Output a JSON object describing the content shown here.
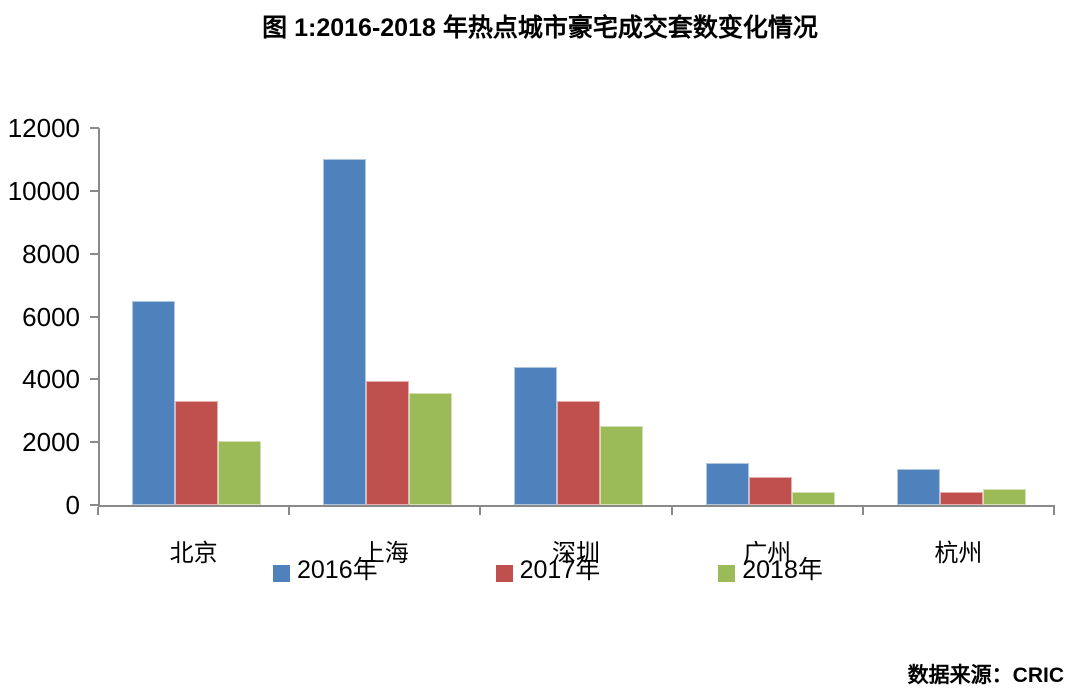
{
  "page": {
    "background": "#ffffff",
    "text_color": "#000000",
    "axis_color": "#8a8a8a"
  },
  "title": "图 1:2016-2018 年热点城市豪宅成交套数变化情况",
  "source_note": "数据来源：CRIC",
  "chart_data": {
    "type": "bar",
    "title": "图 1:2016-2018 年热点城市豪宅成交套数变化情况",
    "categories": [
      "北京",
      "上海",
      "深圳",
      "广州",
      "杭州"
    ],
    "series": [
      {
        "name": "2016年",
        "color": "#4F81BD",
        "values": [
          6500,
          11000,
          4400,
          1350,
          1150
        ]
      },
      {
        "name": "2017年",
        "color": "#C0504D",
        "values": [
          3300,
          3950,
          3300,
          900,
          400
        ]
      },
      {
        "name": "2018年",
        "color": "#9BBB59",
        "values": [
          2050,
          3550,
          2500,
          400,
          500
        ]
      }
    ],
    "xlabel": "",
    "ylabel": "",
    "ylim": [
      0,
      12000
    ],
    "yticks": [
      0,
      2000,
      4000,
      6000,
      8000,
      10000,
      12000
    ],
    "grid": false,
    "legend_position": "bottom",
    "legend_entries": [
      "2016年",
      "2017年",
      "2018年"
    ],
    "source": "数据来源：CRIC"
  }
}
